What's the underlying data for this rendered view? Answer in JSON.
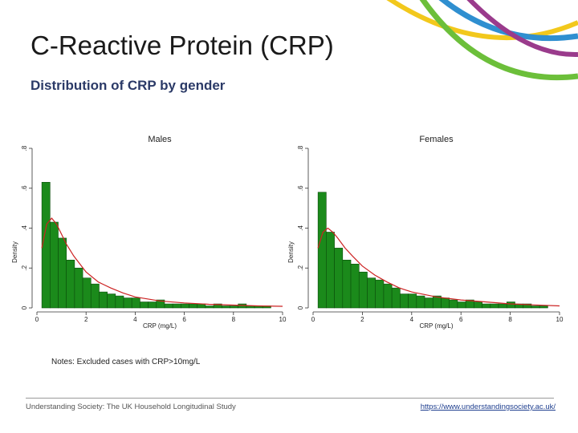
{
  "slide": {
    "title": "C-Reactive Protein (CRP)",
    "subtitle": "Distribution of CRP by gender",
    "notes": "Notes: Excluded cases with CRP>10mg/L",
    "footer_left": "Understanding Society: The UK Household Longitudinal Study",
    "footer_right": "https://www.understandingsociety.ac.uk/"
  },
  "colors": {
    "bar_fill": "#1b8a1b",
    "bar_stroke": "#0b4d0b",
    "curve": "#cc2222",
    "arc_yellow": "#f2c81c",
    "arc_blue": "#2f8fd0",
    "arc_purple": "#9a3b8c",
    "arc_green": "#6cbf3a"
  },
  "chart_data": [
    {
      "type": "bar",
      "title": "Males",
      "xlabel": "CRP (mg/L)",
      "ylabel": "Density",
      "xlim": [
        0,
        10
      ],
      "ylim": [
        0,
        0.8
      ],
      "xticks": [
        0,
        2,
        4,
        6,
        8,
        10
      ],
      "yticks": [
        0,
        0.2,
        0.4,
        0.6,
        0.8
      ],
      "ytick_labels": [
        "0",
        ".2",
        ".4",
        ".6",
        ".8"
      ],
      "bin_width": 0.333,
      "bins_start": 0.2,
      "values": [
        0.63,
        0.43,
        0.35,
        0.24,
        0.2,
        0.15,
        0.12,
        0.08,
        0.07,
        0.06,
        0.05,
        0.05,
        0.03,
        0.03,
        0.04,
        0.02,
        0.02,
        0.02,
        0.02,
        0.02,
        0.01,
        0.02,
        0.01,
        0.01,
        0.02,
        0.01,
        0.01,
        0.01
      ],
      "curve": [
        [
          0.2,
          0.3
        ],
        [
          0.4,
          0.42
        ],
        [
          0.6,
          0.45
        ],
        [
          0.8,
          0.42
        ],
        [
          1.0,
          0.37
        ],
        [
          1.2,
          0.32
        ],
        [
          1.5,
          0.26
        ],
        [
          2.0,
          0.18
        ],
        [
          2.5,
          0.13
        ],
        [
          3.0,
          0.1
        ],
        [
          3.5,
          0.075
        ],
        [
          4.0,
          0.055
        ],
        [
          5.0,
          0.035
        ],
        [
          6.0,
          0.025
        ],
        [
          7.0,
          0.018
        ],
        [
          8.0,
          0.014
        ],
        [
          9.0,
          0.01
        ],
        [
          10.0,
          0.008
        ]
      ]
    },
    {
      "type": "bar",
      "title": "Females",
      "xlabel": "CRP (mg/L)",
      "ylabel": "Density",
      "xlim": [
        0,
        10
      ],
      "ylim": [
        0,
        0.8
      ],
      "xticks": [
        0,
        2,
        4,
        6,
        8,
        10
      ],
      "yticks": [
        0,
        0.2,
        0.4,
        0.6,
        0.8
      ],
      "ytick_labels": [
        "0",
        ".2",
        ".4",
        ".6",
        ".8"
      ],
      "bin_width": 0.333,
      "bins_start": 0.2,
      "values": [
        0.58,
        0.38,
        0.3,
        0.24,
        0.22,
        0.18,
        0.15,
        0.14,
        0.12,
        0.1,
        0.07,
        0.07,
        0.06,
        0.05,
        0.06,
        0.05,
        0.04,
        0.03,
        0.04,
        0.03,
        0.02,
        0.02,
        0.02,
        0.03,
        0.02,
        0.02,
        0.01,
        0.01
      ],
      "curve": [
        [
          0.2,
          0.3
        ],
        [
          0.4,
          0.38
        ],
        [
          0.6,
          0.4
        ],
        [
          0.8,
          0.38
        ],
        [
          1.0,
          0.35
        ],
        [
          1.3,
          0.3
        ],
        [
          1.6,
          0.26
        ],
        [
          2.0,
          0.21
        ],
        [
          2.5,
          0.165
        ],
        [
          3.0,
          0.13
        ],
        [
          3.5,
          0.1
        ],
        [
          4.0,
          0.08
        ],
        [
          5.0,
          0.055
        ],
        [
          6.0,
          0.04
        ],
        [
          7.0,
          0.03
        ],
        [
          8.0,
          0.02
        ],
        [
          9.0,
          0.015
        ],
        [
          10.0,
          0.01
        ]
      ]
    }
  ]
}
